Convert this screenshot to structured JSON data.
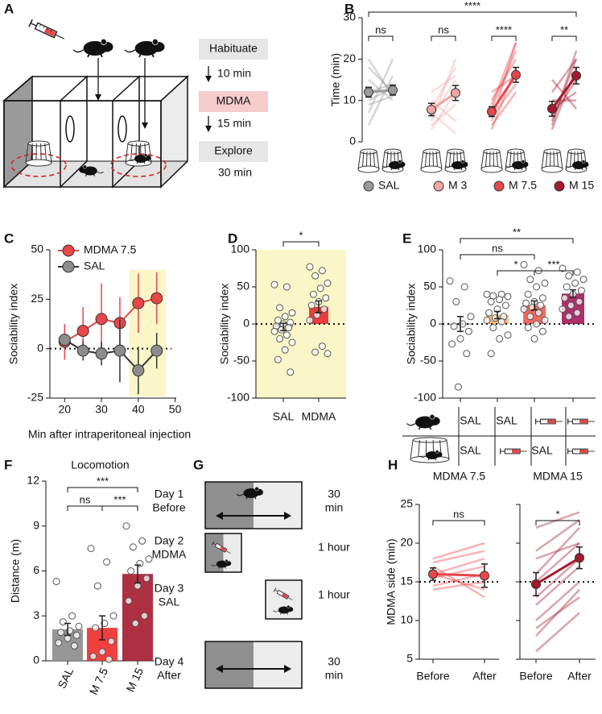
{
  "panel_labels": [
    "A",
    "B",
    "C",
    "D",
    "E",
    "F",
    "G",
    "H"
  ],
  "schematic_a": {
    "steps": [
      "Habituate",
      "MDMA",
      "Explore"
    ],
    "intervals": [
      "10 min",
      "15 min",
      "30 min"
    ]
  },
  "schematic_g": {
    "days": [
      {
        "label": [
          "Day 1",
          "Before"
        ],
        "duration": [
          "30",
          "min"
        ]
      },
      {
        "label": [
          "Day 2",
          "MDMA"
        ],
        "duration": [
          "1 hour"
        ]
      },
      {
        "label": [
          "Day 3",
          "SAL"
        ],
        "duration": [
          "1 hour"
        ]
      },
      {
        "label": [
          "Day 4",
          "After"
        ],
        "duration": [
          "30",
          "min"
        ]
      }
    ]
  },
  "table": {
    "rows": [
      [
        "SAL",
        "SAL",
        null,
        null
      ],
      [
        "SAL",
        null,
        "SAL",
        null
      ]
    ]
  },
  "chart_data": [
    {
      "type": "slope",
      "ylabel": "Time (min)",
      "ylim": [
        0,
        30
      ],
      "yticks": [
        0,
        10,
        20,
        30
      ],
      "significance": "****",
      "series": [
        {
          "name": "SAL",
          "color": "#9a9a9a",
          "values": [
            12,
            12.5
          ],
          "errors": [
            1.2,
            1.2
          ],
          "significance": "ns",
          "individual": [
            [
              20,
              11
            ],
            [
              7,
              20
            ],
            [
              10,
              13
            ],
            [
              15,
              10
            ],
            [
              12,
              14
            ],
            [
              4,
              16
            ],
            [
              18,
              12
            ],
            [
              9,
              11
            ]
          ]
        },
        {
          "name": "M 3",
          "color": "#f2a5a5",
          "values": [
            7.8,
            11.8
          ],
          "errors": [
            1.5,
            1.8
          ],
          "significance": "ns",
          "individual": [
            [
              5,
              20
            ],
            [
              8,
              18
            ],
            [
              3,
              12
            ],
            [
              10,
              5
            ],
            [
              6,
              15
            ],
            [
              12,
              16
            ],
            [
              4,
              9
            ],
            [
              7,
              2
            ]
          ]
        },
        {
          "name": "M 7.5",
          "color": "#e8474a",
          "values": [
            7.3,
            16.2
          ],
          "errors": [
            1.2,
            1.8
          ],
          "significance": "****",
          "individual": [
            [
              5,
              24
            ],
            [
              8,
              22
            ],
            [
              3,
              18
            ],
            [
              10,
              20
            ],
            [
              6,
              14
            ],
            [
              9,
              24
            ],
            [
              4,
              12
            ],
            [
              12,
              16
            ]
          ]
        },
        {
          "name": "M 15",
          "color": "#a6192e",
          "values": [
            8,
            16
          ],
          "errors": [
            1.8,
            2
          ],
          "significance": "**",
          "individual": [
            [
              4,
              22
            ],
            [
              12,
              20
            ],
            [
              6,
              15
            ],
            [
              15,
              8
            ],
            [
              10,
              10
            ],
            [
              3,
              18
            ],
            [
              8,
              12
            ],
            [
              5,
              20
            ]
          ]
        }
      ]
    },
    {
      "type": "line",
      "xlabel": "Min after intraperitoneal injection",
      "ylabel": "Sociability index",
      "x": [
        20,
        25,
        30,
        35,
        40,
        45
      ],
      "xlim": [
        16,
        49
      ],
      "xticks": [
        20,
        30,
        40,
        50
      ],
      "ylim": [
        -25,
        50
      ],
      "yticks": [
        -25,
        0,
        25,
        50
      ],
      "highlight": [
        37.5,
        47.5
      ],
      "highlight_color": "#fbf6c8",
      "reference": 0,
      "series": [
        {
          "name": "MDMA 7.5",
          "color": "#e8474a",
          "values": [
            3.5,
            9,
            15,
            13,
            23,
            25.5
          ],
          "errors": [
            9,
            12,
            18,
            13,
            15,
            13
          ]
        },
        {
          "name": "SAL",
          "color": "#8c8c8c",
          "values": [
            4.5,
            -1,
            -2.5,
            -1,
            -11,
            -1
          ],
          "errors": [
            2,
            5,
            6,
            16,
            12,
            9
          ]
        }
      ]
    },
    {
      "type": "bar",
      "ylabel": "Sociability index",
      "ylim": [
        -100,
        100
      ],
      "yticks": [
        -100,
        -50,
        0,
        50,
        100
      ],
      "categories": [
        "SAL",
        "MDMA"
      ],
      "values": [
        -4,
        23
      ],
      "errors": [
        5,
        8
      ],
      "colors": [
        "#8c8c8c",
        "#e8282b"
      ],
      "background": "#fbf6c8",
      "reference": 0,
      "points": [
        [
          53,
          50,
          22,
          15,
          10,
          5,
          2,
          0,
          -3,
          -5,
          -8,
          -10,
          -15,
          -20,
          -25,
          -35,
          -48,
          -65
        ],
        [
          77,
          72,
          65,
          55,
          48,
          40,
          35,
          30,
          25,
          20,
          12,
          5,
          -30,
          -38,
          -40
        ]
      ],
      "annotations": [
        {
          "text": "*",
          "between": [
            0,
            1
          ]
        }
      ]
    },
    {
      "type": "bar",
      "ylabel": "Sociability index",
      "ylim": [
        -100,
        100
      ],
      "yticks": [
        -100,
        -50,
        0,
        50,
        100
      ],
      "values": [
        0,
        12,
        25,
        41
      ],
      "errors": [
        10,
        5,
        6,
        5
      ],
      "colors": [
        "#ffffff",
        "#f6b27c",
        "#ee5a4f",
        "#a3195b"
      ],
      "reference": 0,
      "points": [
        [
          58,
          50,
          30,
          10,
          0,
          -3,
          -10,
          -20,
          -27,
          -40,
          -85
        ],
        [
          40,
          40,
          38,
          37,
          33,
          30,
          25,
          20,
          15,
          10,
          8,
          5,
          3,
          -5,
          -15,
          -20,
          -40
        ],
        [
          80,
          72,
          60,
          55,
          50,
          40,
          35,
          30,
          28,
          25,
          22,
          20,
          15,
          10,
          5,
          0,
          -5,
          -10,
          -20
        ],
        [
          75,
          70,
          65,
          60,
          55,
          50,
          45,
          40,
          35,
          30,
          25,
          20,
          15,
          10
        ]
      ],
      "annotations": [
        {
          "text": "ns",
          "between": [
            0,
            2
          ]
        },
        {
          "text": "*",
          "between": [
            1,
            2
          ]
        },
        {
          "text": "***",
          "between": [
            2,
            3
          ]
        },
        {
          "text": "**",
          "between": [
            0,
            3
          ]
        }
      ]
    },
    {
      "type": "bar",
      "title": "Locomotion",
      "ylabel": "Distance (m)",
      "ylim": [
        0,
        12
      ],
      "yticks": [
        0,
        3,
        6,
        9,
        12
      ],
      "categories": [
        "SAL",
        "M 7.5",
        "M 15"
      ],
      "values": [
        2.1,
        2.2,
        5.8
      ],
      "errors": [
        0.4,
        0.8,
        0.6
      ],
      "colors": [
        "#8c8c8c",
        "#ee2a2a",
        "#a3192e"
      ],
      "points": [
        [
          5.3,
          3.0,
          2.6,
          2.3,
          2.0,
          1.9,
          1.7,
          1.5,
          1.2,
          1.0
        ],
        [
          7.5,
          6.6,
          5.0,
          3.0,
          2.5,
          2.2,
          1.3,
          0.6,
          0.3,
          0.1
        ],
        [
          9.0,
          8.0,
          7.6,
          6.8,
          6.5,
          6.0,
          5.5,
          5.0,
          4.0,
          3.0,
          2.5
        ]
      ],
      "annotations": [
        {
          "text": "ns",
          "between": [
            0,
            1
          ]
        },
        {
          "text": "***",
          "between": [
            1,
            2
          ]
        },
        {
          "text": "***",
          "between": [
            0,
            2
          ]
        }
      ]
    },
    {
      "type": "slope",
      "title": "MDMA 7.5",
      "title_color": "#e8474a",
      "ylabel": "MDMA side (min)",
      "categories": [
        "Before",
        "After"
      ],
      "ylim": [
        5,
        25
      ],
      "yticks": [
        5,
        10,
        15,
        20,
        25
      ],
      "reference": 15,
      "series": [
        {
          "color": "#e8474a",
          "values": [
            16,
            15.8
          ],
          "errors": [
            0.8,
            1.5
          ],
          "significance": "ns",
          "individual": [
            [
              18,
              20
            ],
            [
              17.5,
              19
            ],
            [
              16,
              14
            ],
            [
              15.5,
              17
            ],
            [
              16,
              18
            ],
            [
              14.5,
              16
            ],
            [
              17,
              13
            ],
            [
              14,
              15
            ]
          ]
        }
      ]
    },
    {
      "type": "slope",
      "title": "MDMA 15",
      "title_color": "#a3192e",
      "categories": [
        "Before",
        "After"
      ],
      "ylim": [
        5,
        25
      ],
      "yticks": [
        5,
        10,
        15,
        20,
        25
      ],
      "reference": 15,
      "series": [
        {
          "color": "#a3192e",
          "values": [
            14.7,
            18.1
          ],
          "errors": [
            1.5,
            1.4
          ],
          "significance": "*",
          "individual": [
            [
              22,
              24
            ],
            [
              19,
              23
            ],
            [
              18,
              20
            ],
            [
              16,
              22
            ],
            [
              15,
              20
            ],
            [
              13,
              18
            ],
            [
              12,
              17
            ],
            [
              10,
              15
            ],
            [
              8,
              14
            ],
            [
              6,
              11
            ],
            [
              9,
              13
            ]
          ]
        }
      ]
    }
  ]
}
